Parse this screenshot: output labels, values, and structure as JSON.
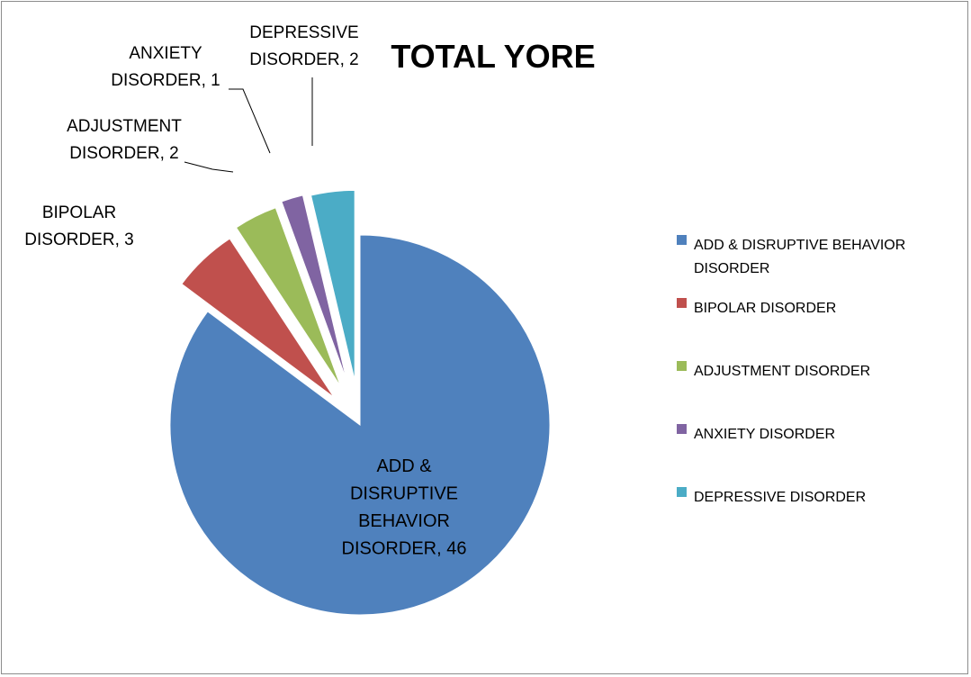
{
  "chart_data": {
    "type": "pie",
    "title": "TOTAL YORE",
    "categories": [
      "ADD & DISRUPTIVE BEHAVIOR DISORDER",
      "BIPOLAR DISORDER",
      "ADJUSTMENT DISORDER",
      "ANXIETY DISORDER",
      "DEPRESSIVE DISORDER"
    ],
    "values": [
      46,
      3,
      2,
      1,
      2
    ],
    "colors": [
      "#4F81BD",
      "#C0504D",
      "#9BBB59",
      "#8064A2",
      "#4BACC6"
    ],
    "data_labels": [
      [
        "ADD &",
        "DISRUPTIVE",
        "BEHAVIOR",
        "DISORDER, 46"
      ],
      [
        "BIPOLAR",
        "DISORDER, 3"
      ],
      [
        "ADJUSTMENT",
        "DISORDER, 2"
      ],
      [
        "ANXIETY",
        "DISORDER, 1"
      ],
      [
        "DEPRESSIVE",
        "DISORDER, 2"
      ]
    ],
    "legend": {
      "position": "right",
      "items": [
        [
          "ADD & DISRUPTIVE BEHAVIOR",
          "DISORDER"
        ],
        [
          "BIPOLAR DISORDER"
        ],
        [
          "ADJUSTMENT DISORDER"
        ],
        [
          "ANXIETY DISORDER"
        ],
        [
          "DEPRESSIVE DISORDER"
        ]
      ]
    },
    "exploded": true
  }
}
